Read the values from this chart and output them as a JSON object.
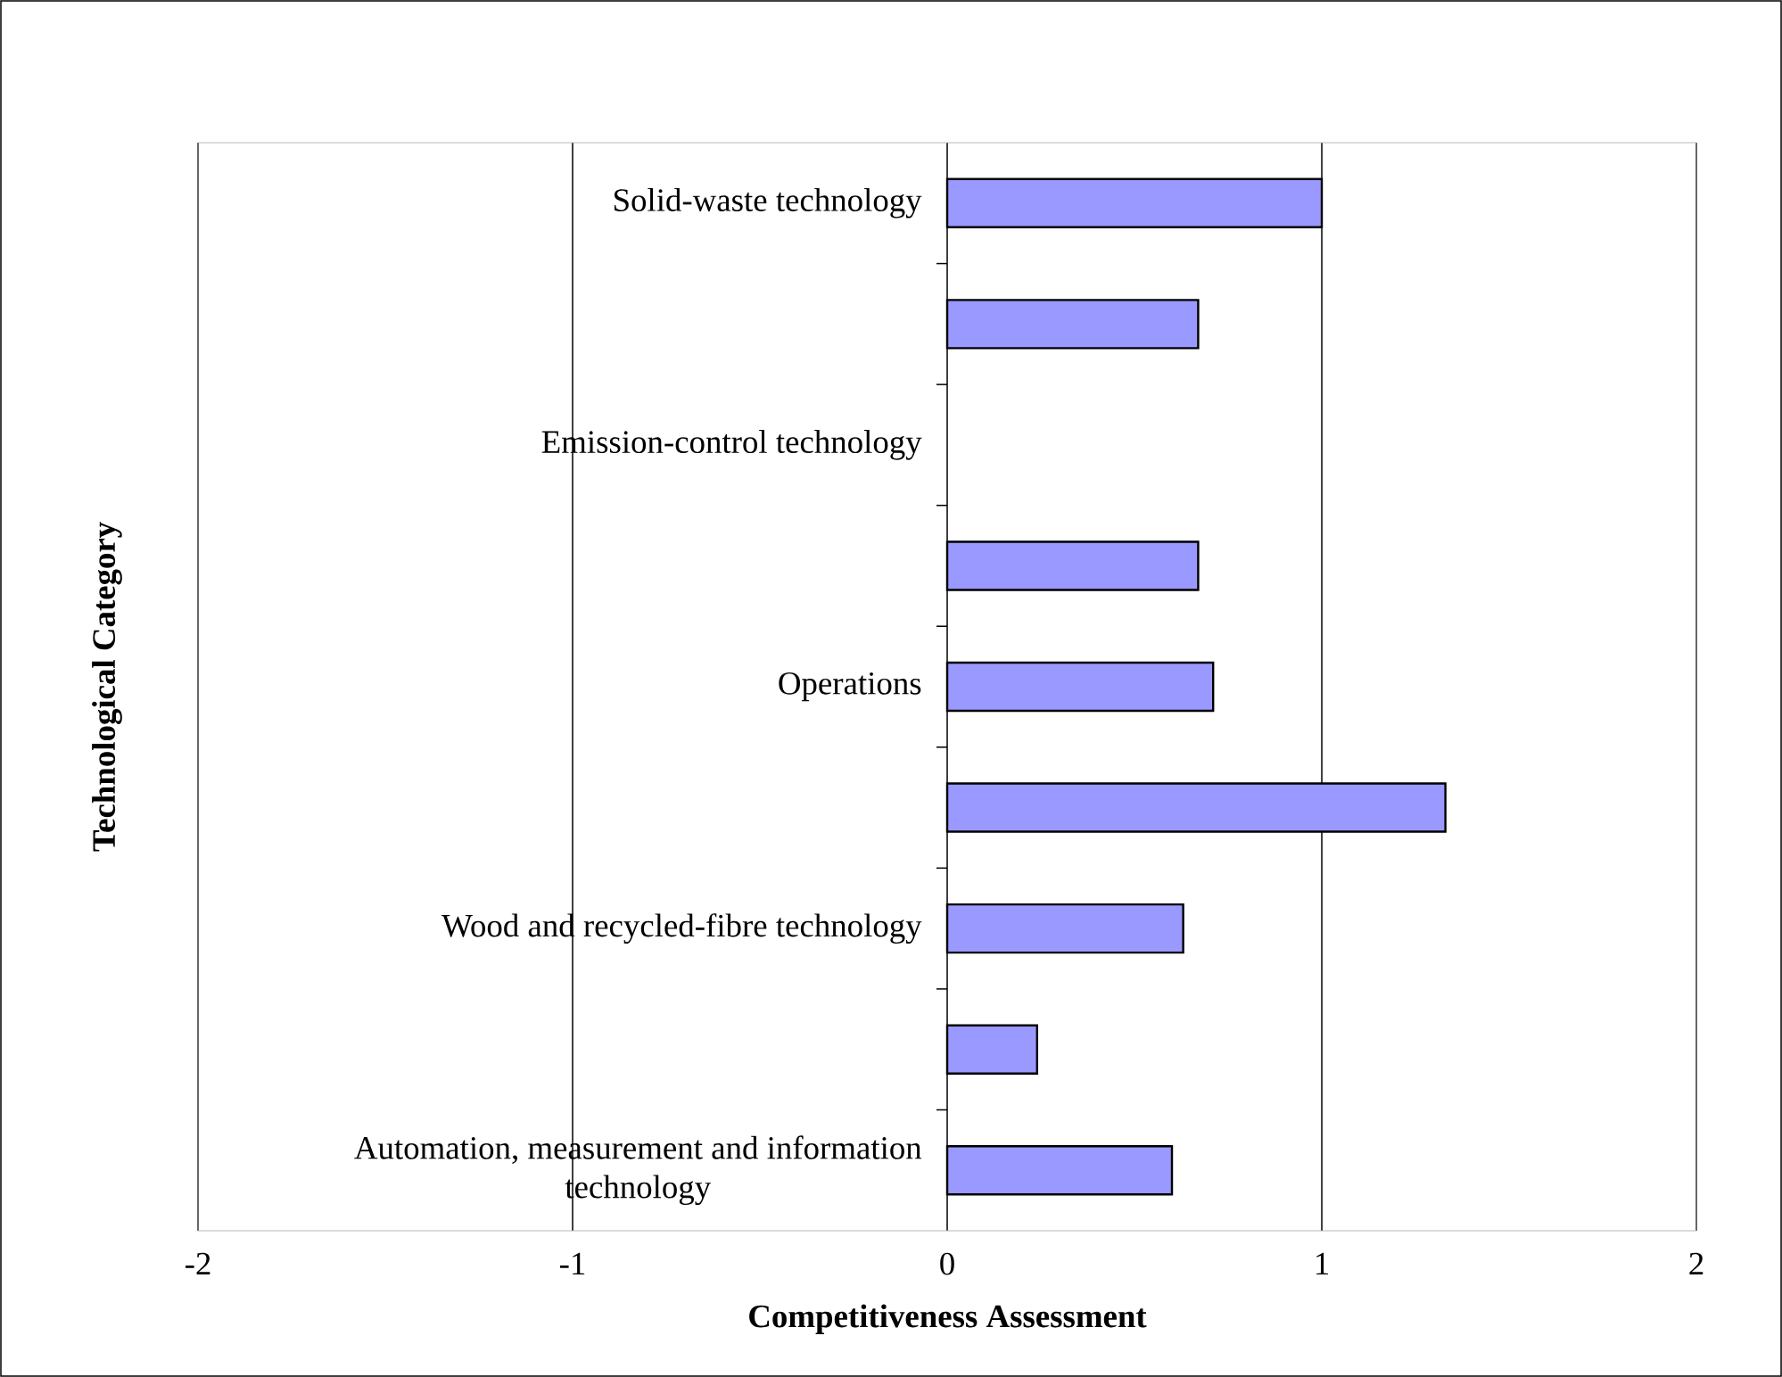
{
  "chart_data": {
    "type": "bar",
    "orientation": "horizontal",
    "xlabel": "Competitiveness Assessment",
    "ylabel": "Technological Category",
    "categories": [
      "Solid-waste technology",
      null,
      "Emission-control technology",
      null,
      "Operations",
      null,
      "Wood and recycled-fibre technology",
      null,
      "Automation, measurement and information technology"
    ],
    "values": [
      1.0,
      0.67,
      null,
      0.67,
      0.71,
      1.33,
      0.63,
      0.24,
      0.6
    ],
    "color": "#9999ff",
    "xlim": [
      -2,
      2
    ],
    "xticks": [
      -2,
      -1,
      0,
      1,
      2
    ],
    "grid": "x"
  }
}
